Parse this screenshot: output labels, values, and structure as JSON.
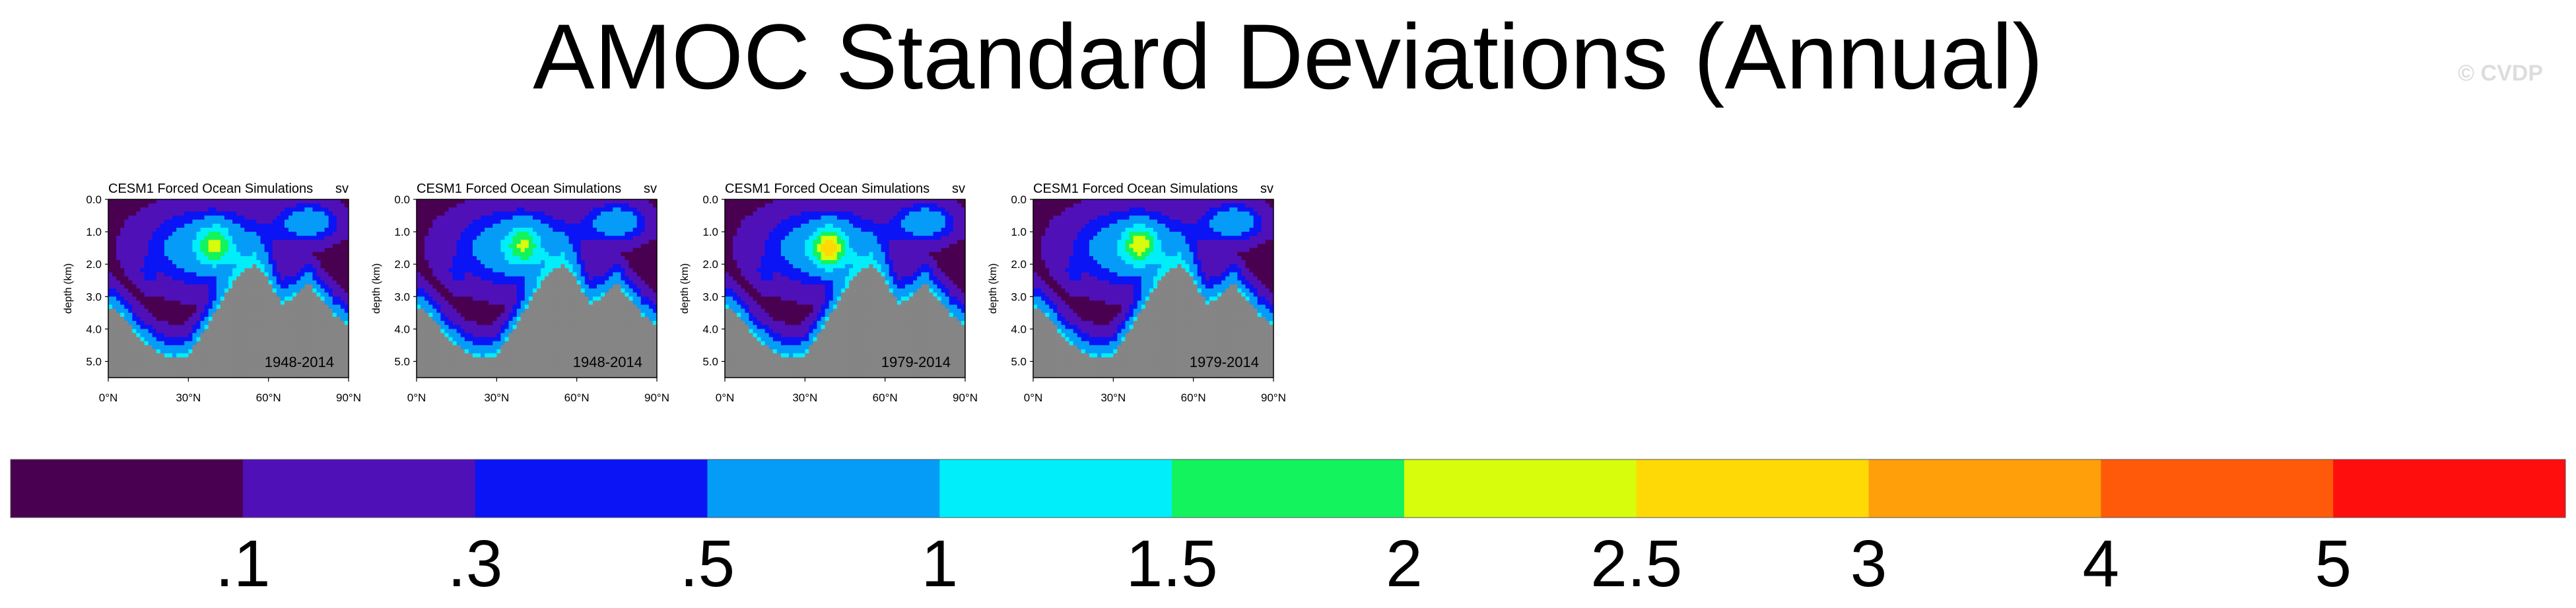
{
  "page": {
    "title": "AMOC Standard Deviations (Annual)",
    "watermark": "© CVDP"
  },
  "chart_data": [
    {
      "type": "heatmap",
      "title": "CESM1 Forced Ocean Simulations",
      "title_right": "sv",
      "period": "1948-2014",
      "ylabel": "depth (km)",
      "xlim": [
        0,
        90
      ],
      "ylim": [
        5.5,
        0
      ],
      "x_ticks": [
        "0°N",
        "30°N",
        "60°N",
        "90°N"
      ],
      "y_ticks": [
        "0.0",
        "1.0",
        "2.0",
        "3.0",
        "4.0",
        "5.0"
      ],
      "core": {
        "lat": 40,
        "depth": 1.4,
        "peak_sv": 2.2
      }
    },
    {
      "type": "heatmap",
      "title": "CESM1 Forced Ocean Simulations",
      "title_right": "sv",
      "period": "1948-2014",
      "ylabel": "depth (km)",
      "xlim": [
        0,
        90
      ],
      "ylim": [
        5.5,
        0
      ],
      "x_ticks": [
        "0°N",
        "30°N",
        "60°N",
        "90°N"
      ],
      "y_ticks": [
        "0.0",
        "1.0",
        "2.0",
        "3.0",
        "4.0",
        "5.0"
      ],
      "core": {
        "lat": 40,
        "depth": 1.4,
        "peak_sv": 2.1
      }
    },
    {
      "type": "heatmap",
      "title": "CESM1 Forced Ocean Simulations",
      "title_right": "sv",
      "period": "1979-2014",
      "ylabel": "depth (km)",
      "xlim": [
        0,
        90
      ],
      "ylim": [
        5.5,
        0
      ],
      "x_ticks": [
        "0°N",
        "30°N",
        "60°N",
        "90°N"
      ],
      "y_ticks": [
        "0.0",
        "1.0",
        "2.0",
        "3.0",
        "4.0",
        "5.0"
      ],
      "core": {
        "lat": 39,
        "depth": 1.5,
        "peak_sv": 2.8
      }
    },
    {
      "type": "heatmap",
      "title": "CESM1 Forced Ocean Simulations",
      "title_right": "sv",
      "period": "1979-2014",
      "ylabel": "depth (km)",
      "xlim": [
        0,
        90
      ],
      "ylim": [
        5.5,
        0
      ],
      "x_ticks": [
        "0°N",
        "30°N",
        "60°N",
        "90°N"
      ],
      "y_ticks": [
        "0.0",
        "1.0",
        "2.0",
        "3.0",
        "4.0",
        "5.0"
      ],
      "core": {
        "lat": 40,
        "depth": 1.4,
        "peak_sv": 2.4
      }
    }
  ],
  "colorbar": {
    "colors": [
      "#4a0050",
      "#5010b8",
      "#0a14f5",
      "#059cf8",
      "#00eefa",
      "#12f35d",
      "#d7fc0c",
      "#ffd905",
      "#ffa00a",
      "#ff5a0a",
      "#ff0e0e"
    ],
    "labels": [
      ".1",
      ".3",
      ".5",
      "1",
      "1.5",
      "2",
      "2.5",
      "3",
      "4",
      "5"
    ],
    "thresholds": [
      0.1,
      0.3,
      0.5,
      1,
      1.5,
      2,
      2.5,
      3,
      4,
      5
    ]
  },
  "colors": {
    "land": "#858585",
    "background": "#ffffff"
  }
}
